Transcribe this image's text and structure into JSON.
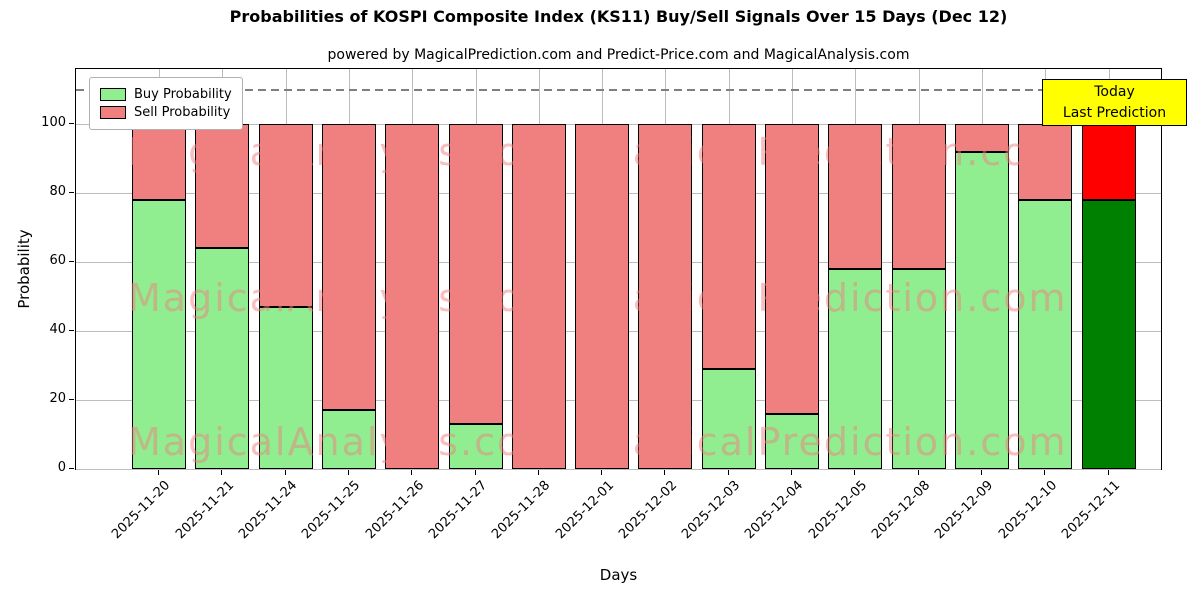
{
  "header": {
    "title": "Probabilities of KOSPI Composite Index (KS11) Buy/Sell Signals Over 15 Days (Dec 12)",
    "subtitle": "powered by MagicalPrediction.com and Predict-Price.com and MagicalAnalysis.com"
  },
  "chart_data": {
    "type": "bar",
    "stacked": true,
    "title": "Probabilities of KOSPI Composite Index (KS11) Buy/Sell Signals Over 15 Days (Dec 12)",
    "xlabel": "Days",
    "ylabel": "Probability",
    "ylim": [
      0,
      116
    ],
    "yticks": [
      0,
      20,
      40,
      60,
      80,
      100
    ],
    "grid": true,
    "legend_position": "upper left",
    "dashed_line_y": 110,
    "categories": [
      "2025-11-20",
      "2025-11-21",
      "2025-11-24",
      "2025-11-25",
      "2025-11-26",
      "2025-11-27",
      "2025-11-28",
      "2025-12-01",
      "2025-12-02",
      "2025-12-03",
      "2025-12-04",
      "2025-12-05",
      "2025-12-08",
      "2025-12-09",
      "2025-12-10",
      "2025-12-11"
    ],
    "series": [
      {
        "name": "Buy Probability",
        "color": "#90EE90",
        "values": [
          78,
          64,
          47,
          17,
          0,
          13,
          0,
          0,
          0,
          29,
          16,
          58,
          58,
          92,
          78,
          78
        ]
      },
      {
        "name": "Sell Probability",
        "color": "#F08080",
        "values": [
          22,
          36,
          53,
          83,
          100,
          87,
          100,
          100,
          100,
          71,
          84,
          42,
          42,
          8,
          22,
          22
        ]
      }
    ],
    "last_bar_colors": {
      "buy": "#008000",
      "sell": "#FF0000"
    },
    "bar_edge_color": "#000000"
  },
  "legend": {
    "items": [
      {
        "label": "Buy Probability",
        "color": "#90EE90"
      },
      {
        "label": "Sell Probability",
        "color": "#F08080"
      }
    ]
  },
  "annotation": {
    "line1": "Today",
    "line2": "Last Prediction",
    "bg": "#FFFF00"
  },
  "watermarks": [
    {
      "text": "MagicalAnalysis.com"
    },
    {
      "text": "MagicalPrediction.com"
    }
  ]
}
